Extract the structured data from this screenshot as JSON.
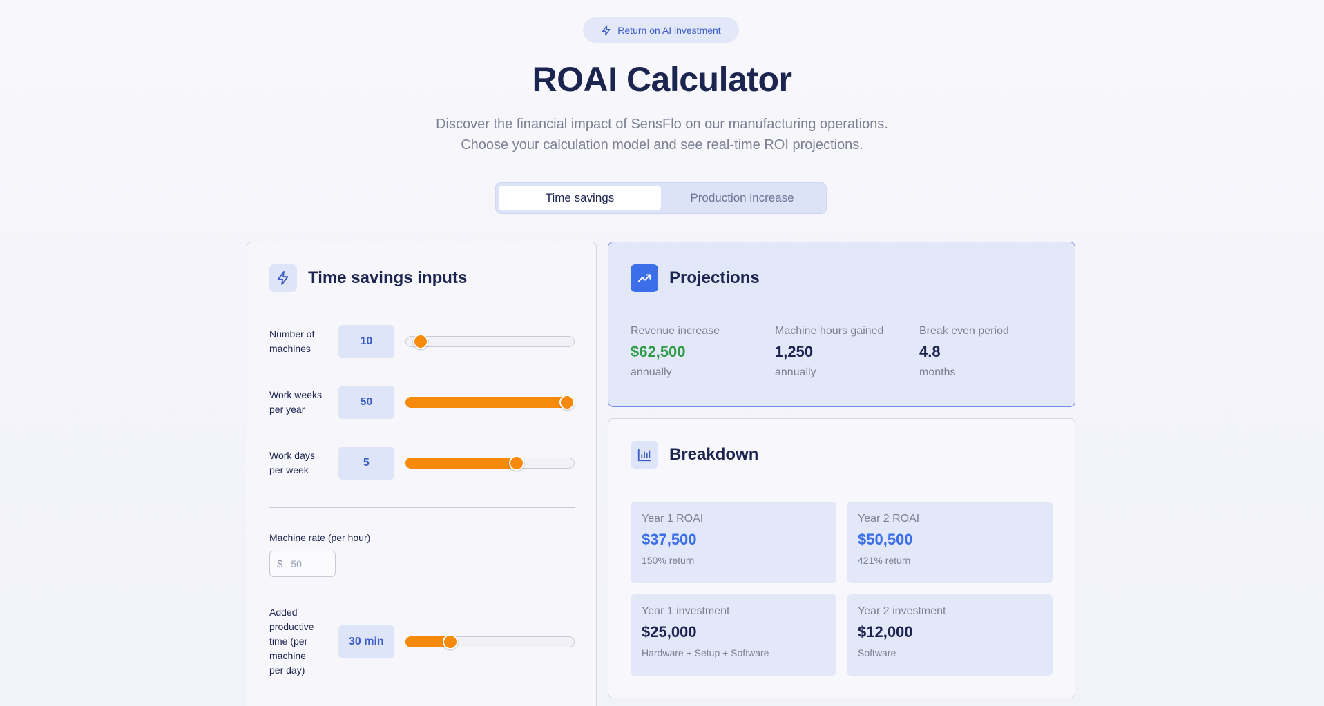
{
  "header": {
    "badge": "Return on AI investment",
    "title": "ROAI Calculator",
    "subtitle_line1": "Discover the financial impact of SensFlo on our manufacturing operations.",
    "subtitle_line2": "Choose your calculation model and see real-time ROI projections."
  },
  "tabs": [
    {
      "label": "Time savings",
      "active": true
    },
    {
      "label": "Production increase",
      "active": false
    }
  ],
  "inputs": {
    "title": "Time savings inputs",
    "icon": "lightning-icon",
    "machines": {
      "label_line1": "Number of",
      "label_line2": "machines",
      "value": "10",
      "level": 0.05
    },
    "weeks": {
      "label_line1": "Work weeks",
      "label_line2": "per year",
      "value": "50",
      "level": 1.0
    },
    "days": {
      "label_line1": "Work days",
      "label_line2": "per week",
      "value": "5",
      "level": 0.67
    },
    "rate": {
      "label": "Machine rate (per hour)",
      "currency": "$",
      "placeholder": "50"
    },
    "productive": {
      "label_lines": [
        "Added",
        "productive",
        "time (per",
        "machine",
        "per day)"
      ],
      "value": "30 min",
      "level": 0.24
    }
  },
  "projections": {
    "title": "Projections",
    "icon": "trending-up-icon",
    "items": [
      {
        "label": "Revenue increase",
        "value": "$62,500",
        "unit": "annually"
      },
      {
        "label": "Machine hours gained",
        "value": "1,250",
        "unit": "annually"
      },
      {
        "label": "Break even period",
        "value": "4.8",
        "unit": "months"
      }
    ]
  },
  "breakdown": {
    "title": "Breakdown",
    "icon": "bar-chart-icon",
    "items": [
      {
        "label": "Year 1 ROAI",
        "value": "$37,500",
        "sub": "150% return"
      },
      {
        "label": "Year 2 ROAI",
        "value": "$50,500",
        "sub": "421% return"
      },
      {
        "label": "Year 1 investment",
        "value": "$25,000",
        "sub": "Hardware + Setup + Software"
      },
      {
        "label": "Year 2 investment",
        "value": "$12,000",
        "sub": "Software"
      }
    ]
  },
  "colors": {
    "accent": "#3b6ee8",
    "slider": "#f58a0c",
    "positive": "#2f9b48",
    "heading": "#1c2450"
  }
}
